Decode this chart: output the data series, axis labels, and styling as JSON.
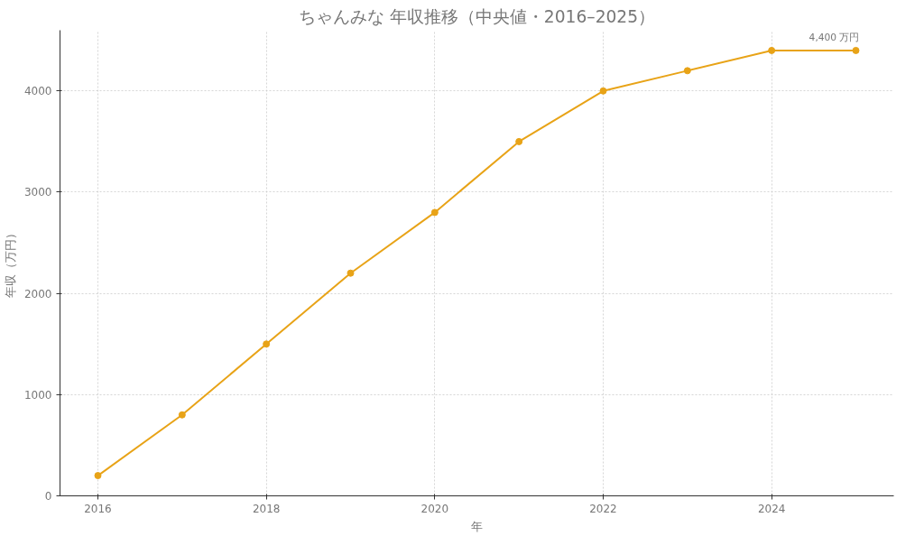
{
  "chart_data": {
    "type": "line",
    "title": "ちゃんみな 年収推移（中央値・2016–2025）",
    "xlabel": "年",
    "ylabel": "年収（万円）",
    "x": [
      2016,
      2017,
      2018,
      2019,
      2020,
      2021,
      2022,
      2023,
      2024,
      2025
    ],
    "series": [
      {
        "color": "#e8a317",
        "values": [
          200,
          800,
          1500,
          2200,
          2800,
          3500,
          4000,
          4200,
          4400,
          4400
        ]
      }
    ],
    "xlim": [
      2015.55,
      2025.45
    ],
    "xticks": [
      2016,
      2018,
      2020,
      2022,
      2024
    ],
    "ylim": [
      0,
      4600
    ],
    "yticks": [
      0,
      1000,
      2000,
      3000,
      4000
    ],
    "grid": true,
    "marker": "circle",
    "line_style": "solid",
    "annotations": [
      {
        "text": "4,400 万円",
        "x": 2025,
        "y": 4400
      }
    ]
  }
}
